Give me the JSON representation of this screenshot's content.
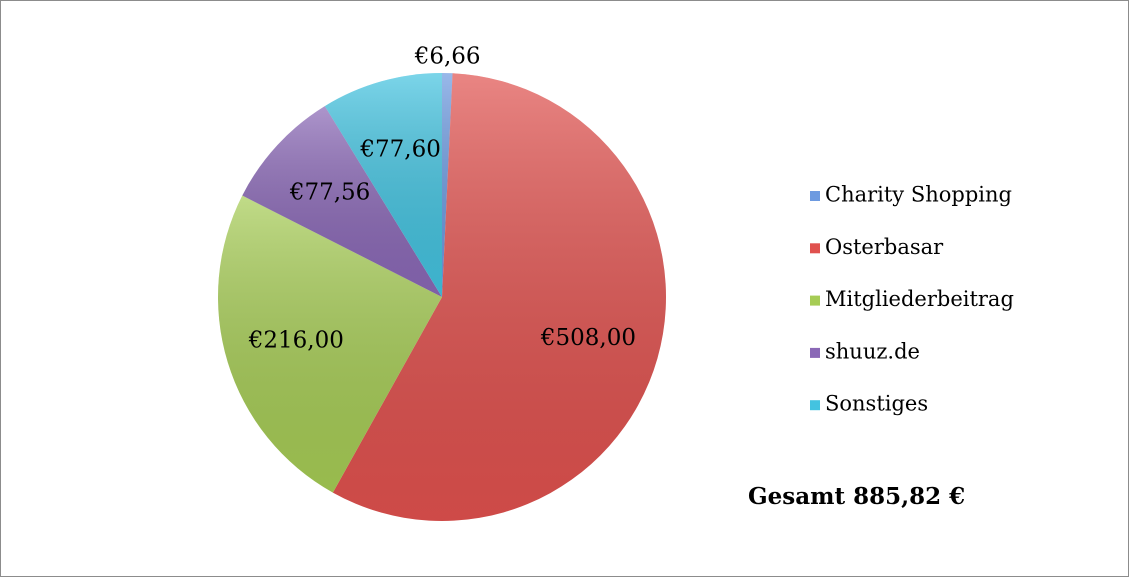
{
  "chart_data": {
    "type": "pie",
    "categories": [
      "Charity Shopping",
      "Osterbasar",
      "Mitgliederbeitrag",
      "shuuz.de",
      "Sonstiges"
    ],
    "values": [
      6.66,
      508,
      216,
      77.56,
      77.6
    ],
    "value_labels": [
      "€6,66",
      "€508,00",
      "€216,00",
      "€77,56",
      "€77,60"
    ],
    "colors": [
      "#6d9ae0",
      "#e0514e",
      "#a6cc55",
      "#8a68b6",
      "#43c3e0"
    ],
    "legend": "right",
    "annotation": "Gesamt 885,82 €"
  }
}
